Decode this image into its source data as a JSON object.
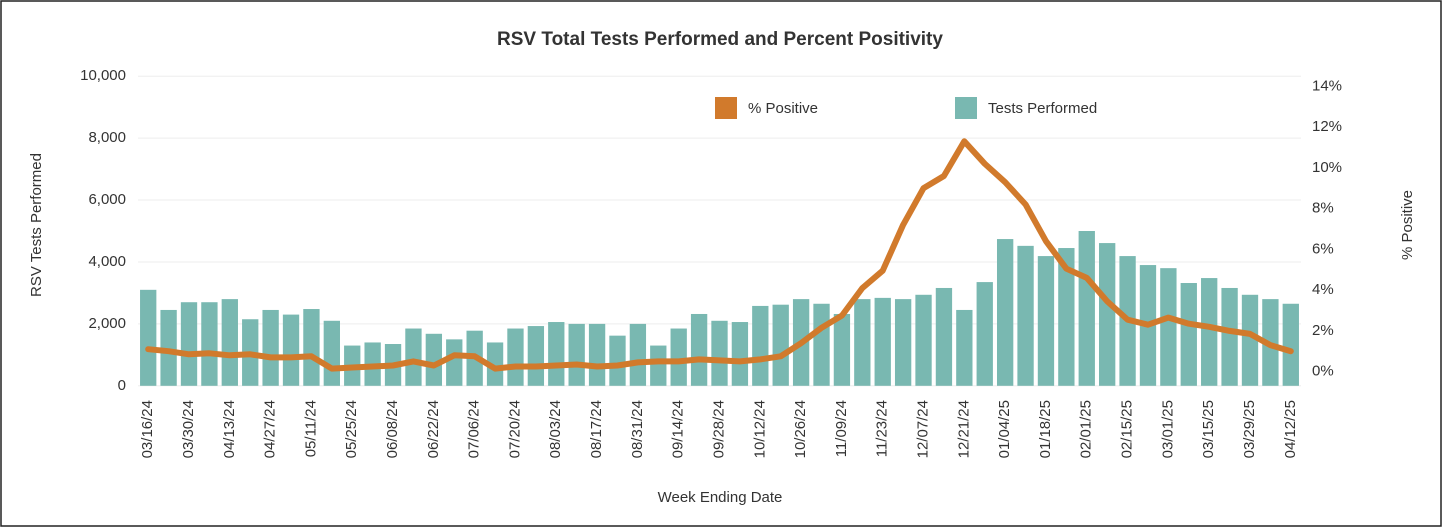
{
  "chart_data": {
    "type": "bar",
    "title": "RSV Total Tests Performed and Percent Positivity",
    "x_label": "Week Ending Date",
    "y_label": "RSV Tests Performed",
    "y2_label": "% Positive",
    "categories": [
      "03/16/24",
      null,
      "03/30/24",
      null,
      "04/13/24",
      null,
      "04/27/24",
      null,
      "05/11/24",
      null,
      "05/25/24",
      null,
      "06/08/24",
      null,
      "06/22/24",
      null,
      "07/06/24",
      null,
      "07/20/24",
      null,
      "08/03/24",
      null,
      "08/17/24",
      null,
      "08/31/24",
      null,
      "09/14/24",
      null,
      "09/28/24",
      null,
      "10/12/24",
      null,
      "10/26/24",
      null,
      "11/09/24",
      null,
      "11/23/24",
      null,
      "12/07/24",
      null,
      "12/21/24",
      null,
      "01/04/25",
      null,
      "01/18/25",
      null,
      "02/01/25",
      null,
      "02/15/25",
      null,
      "03/01/25",
      null,
      "03/15/25",
      null,
      "03/29/25",
      null,
      "04/12/25"
    ],
    "series": [
      {
        "name": "% Positive",
        "type": "line",
        "axis": "y2",
        "color": "#d17a2c",
        "values": [
          1.1,
          1.0,
          0.85,
          0.9,
          0.8,
          0.85,
          0.7,
          0.7,
          0.75,
          0.15,
          0.2,
          0.25,
          0.3,
          0.5,
          0.3,
          0.8,
          0.75,
          0.15,
          0.25,
          0.25,
          0.3,
          0.35,
          0.25,
          0.3,
          0.45,
          0.5,
          0.5,
          0.6,
          0.55,
          0.5,
          0.6,
          0.75,
          1.4,
          2.15,
          2.75,
          4.1,
          4.95,
          7.2,
          9.0,
          9.6,
          11.3,
          10.2,
          9.3,
          8.2,
          6.4,
          5.05,
          4.6,
          3.45,
          2.55,
          2.3,
          2.65,
          2.35,
          2.2,
          2.0,
          1.85,
          1.3,
          1.0
        ]
      },
      {
        "name": "Tests Performed",
        "type": "bar",
        "axis": "y",
        "color": "#79b8b1",
        "values": [
          3100,
          2450,
          2700,
          2700,
          2800,
          2150,
          2450,
          2300,
          2480,
          2100,
          1300,
          1400,
          1350,
          1850,
          1680,
          1500,
          1780,
          1400,
          1850,
          1930,
          2060,
          2000,
          2000,
          1620,
          2000,
          1300,
          1850,
          2320,
          2100,
          2060,
          2580,
          2620,
          2800,
          2650,
          2320,
          2800,
          2840,
          2800,
          2940,
          3160,
          2450,
          3350,
          4740,
          4520,
          4190,
          4450,
          5000,
          4610,
          4190,
          3900,
          3800,
          3320,
          3480,
          3160,
          2940,
          2800,
          2650
        ]
      }
    ],
    "ylim": [
      -200,
      10200
    ],
    "yticks": [
      0,
      {
        "value": 2000,
        "label": "2,000"
      },
      {
        "value": 4000,
        "label": "4,000"
      },
      {
        "value": 6000,
        "label": "6,000"
      },
      {
        "value": 8000,
        "label": "8,000"
      },
      {
        "value": 10000,
        "label": "10,000"
      }
    ],
    "y2lim": [
      -1,
      14.8
    ],
    "y2ticks": [
      {
        "value": 0,
        "label": "0%"
      },
      {
        "value": 2,
        "label": "2%"
      },
      {
        "value": 4,
        "label": "4%"
      },
      {
        "value": 6,
        "label": "6%"
      },
      {
        "value": 8,
        "label": "8%"
      },
      {
        "value": 10,
        "label": "10%"
      },
      {
        "value": 12,
        "label": "12%"
      },
      {
        "value": 14,
        "label": "14%"
      }
    ],
    "grid": true
  }
}
